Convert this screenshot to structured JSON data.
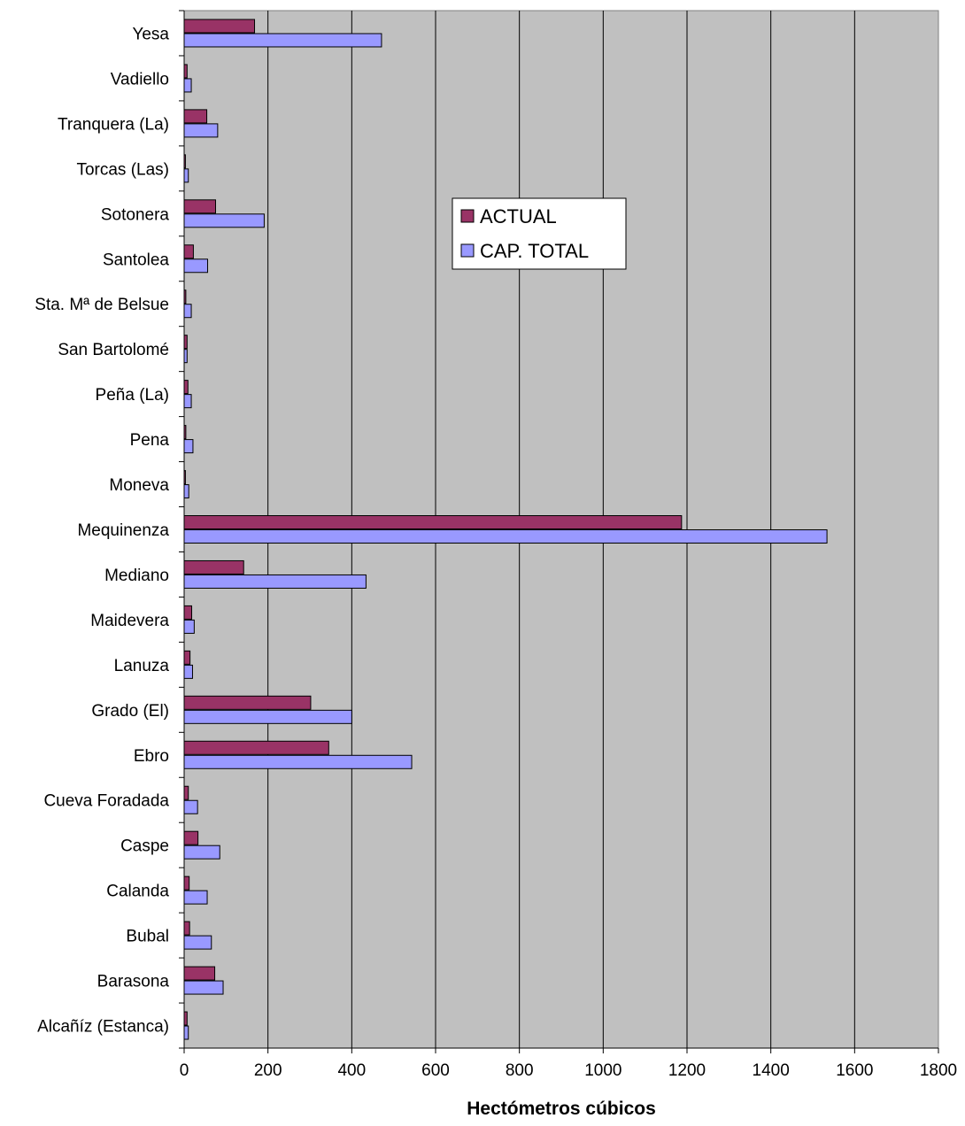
{
  "chart_data": {
    "type": "bar",
    "orientation": "horizontal",
    "title": "",
    "xlabel": "Hectómetros cúbicos",
    "ylabel": "",
    "xlim": [
      0,
      1800
    ],
    "xticks": [
      0,
      200,
      400,
      600,
      800,
      1000,
      1200,
      1400,
      1600,
      1800
    ],
    "grid": true,
    "legend_position": "center",
    "categories": [
      "Yesa",
      "Vadiello",
      "Tranquera (La)",
      "Torcas (Las)",
      "Sotonera",
      "Santolea",
      "Sta. Mª de Belsue",
      "San Bartolomé",
      "Peña (La)",
      "Pena",
      "Moneva",
      "Mequinenza",
      "Mediano",
      "Maidevera",
      "Lanuza",
      "Grado (El)",
      "Ebro",
      "Cueva Foradada",
      "Caspe",
      "Calanda",
      "Bubal",
      "Barasona",
      "Alcañíz (Estanca)"
    ],
    "series": [
      {
        "name": "ACTUAL",
        "color": "#993366",
        "values": [
          168,
          7,
          54,
          3,
          75,
          22,
          4,
          7,
          9,
          4,
          3,
          1187,
          142,
          18,
          14,
          302,
          345,
          10,
          33,
          12,
          13,
          73,
          7
        ]
      },
      {
        "name": "CAP. TOTAL",
        "color": "#9999ff",
        "values": [
          471,
          17,
          80,
          10,
          191,
          56,
          17,
          7,
          17,
          21,
          11,
          1534,
          434,
          24,
          20,
          400,
          543,
          32,
          85,
          55,
          65,
          93,
          10
        ]
      }
    ],
    "plot_background": "#c0c0c0"
  }
}
